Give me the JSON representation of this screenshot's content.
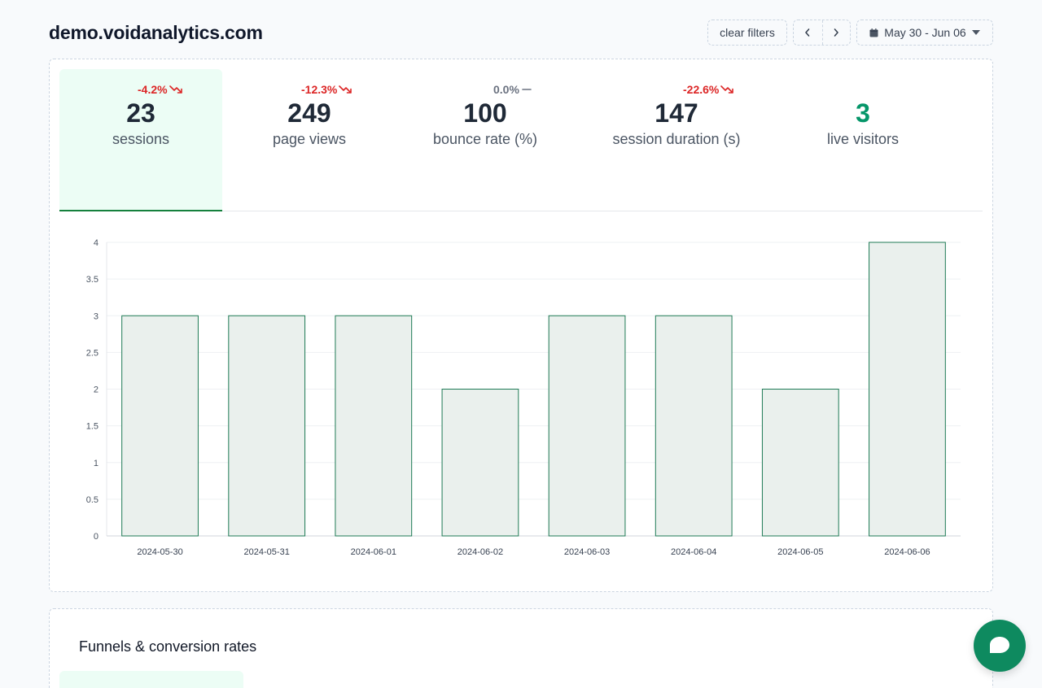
{
  "header": {
    "site": "demo.voidanalytics.com",
    "clear_filters": "clear filters",
    "date_range": "May 30 - Jun 06"
  },
  "stats": [
    {
      "value": "23",
      "label": "sessions",
      "change": "-4.2%",
      "trend": "down"
    },
    {
      "value": "249",
      "label": "page views",
      "change": "-12.3%",
      "trend": "down"
    },
    {
      "value": "100",
      "label": "bounce rate (%)",
      "change": "0.0%",
      "trend": "flat"
    },
    {
      "value": "147",
      "label": "session duration (s)",
      "change": "-22.6%",
      "trend": "down"
    },
    {
      "value": "3",
      "label": "live visitors"
    }
  ],
  "colors": {
    "accent": "#059669",
    "bar_fill": "#eaf0ed",
    "bar_stroke": "#1e7a55",
    "negative": "#dc2626",
    "active_tab_bg": "#ecfdf5"
  },
  "chart_data": {
    "type": "bar",
    "categories": [
      "2024-05-30",
      "2024-05-31",
      "2024-06-01",
      "2024-06-02",
      "2024-06-03",
      "2024-06-04",
      "2024-06-05",
      "2024-06-06"
    ],
    "values": [
      3,
      3,
      3,
      2,
      3,
      3,
      2,
      4
    ],
    "ylim": [
      0,
      4
    ],
    "yticks": [
      "0",
      "0.5",
      "1",
      "1.5",
      "2",
      "2.5",
      "3",
      "3.5",
      "4"
    ],
    "grid": true,
    "title": "",
    "xlabel": "",
    "ylabel": ""
  },
  "funnels": {
    "title": "Funnels & conversion rates"
  }
}
